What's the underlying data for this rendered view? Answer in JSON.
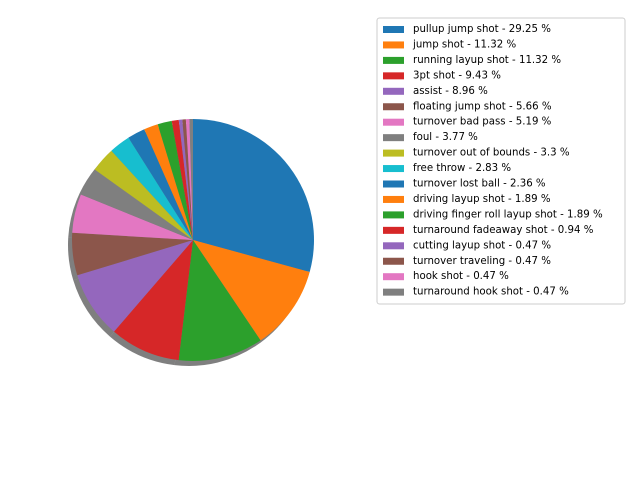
{
  "chart_data": {
    "type": "pie",
    "title": "",
    "shadow": true,
    "legend_placement": "top-right, outside plot",
    "start_angle_deg": 90,
    "direction": "clockwise",
    "slices": [
      {
        "label": "pullup jump shot - 29.25 %",
        "value": 29.25,
        "color": "#1f77b4"
      },
      {
        "label": "jump shot - 11.32 %",
        "value": 11.32,
        "color": "#ff7f0e"
      },
      {
        "label": "running layup shot - 11.32 %",
        "value": 11.32,
        "color": "#2ca02c"
      },
      {
        "label": "3pt shot - 9.43 %",
        "value": 9.43,
        "color": "#d62728"
      },
      {
        "label": "assist - 8.96 %",
        "value": 8.96,
        "color": "#9467bd"
      },
      {
        "label": "floating jump shot - 5.66 %",
        "value": 5.66,
        "color": "#8c564b"
      },
      {
        "label": "turnover bad pass - 5.19 %",
        "value": 5.19,
        "color": "#e377c2"
      },
      {
        "label": "foul - 3.77 %",
        "value": 3.77,
        "color": "#7f7f7f"
      },
      {
        "label": "turnover out of bounds - 3.3 %",
        "value": 3.3,
        "color": "#bcbd22"
      },
      {
        "label": "free throw - 2.83 %",
        "value": 2.83,
        "color": "#17becf"
      },
      {
        "label": "turnover lost ball - 2.36 %",
        "value": 2.36,
        "color": "#1f77b4"
      },
      {
        "label": "driving layup shot - 1.89 %",
        "value": 1.89,
        "color": "#ff7f0e"
      },
      {
        "label": "driving finger roll layup shot - 1.89 %",
        "value": 1.89,
        "color": "#2ca02c"
      },
      {
        "label": "turnaround fadeaway shot - 0.94 %",
        "value": 0.94,
        "color": "#d62728"
      },
      {
        "label": "cutting layup shot - 0.47 %",
        "value": 0.47,
        "color": "#9467bd"
      },
      {
        "label": "turnover traveling - 0.47 %",
        "value": 0.47,
        "color": "#8c564b"
      },
      {
        "label": "hook shot - 0.47 %",
        "value": 0.47,
        "color": "#e377c2"
      },
      {
        "label": "turnaround hook shot - 0.47 %",
        "value": 0.47,
        "color": "#7f7f7f"
      }
    ]
  }
}
